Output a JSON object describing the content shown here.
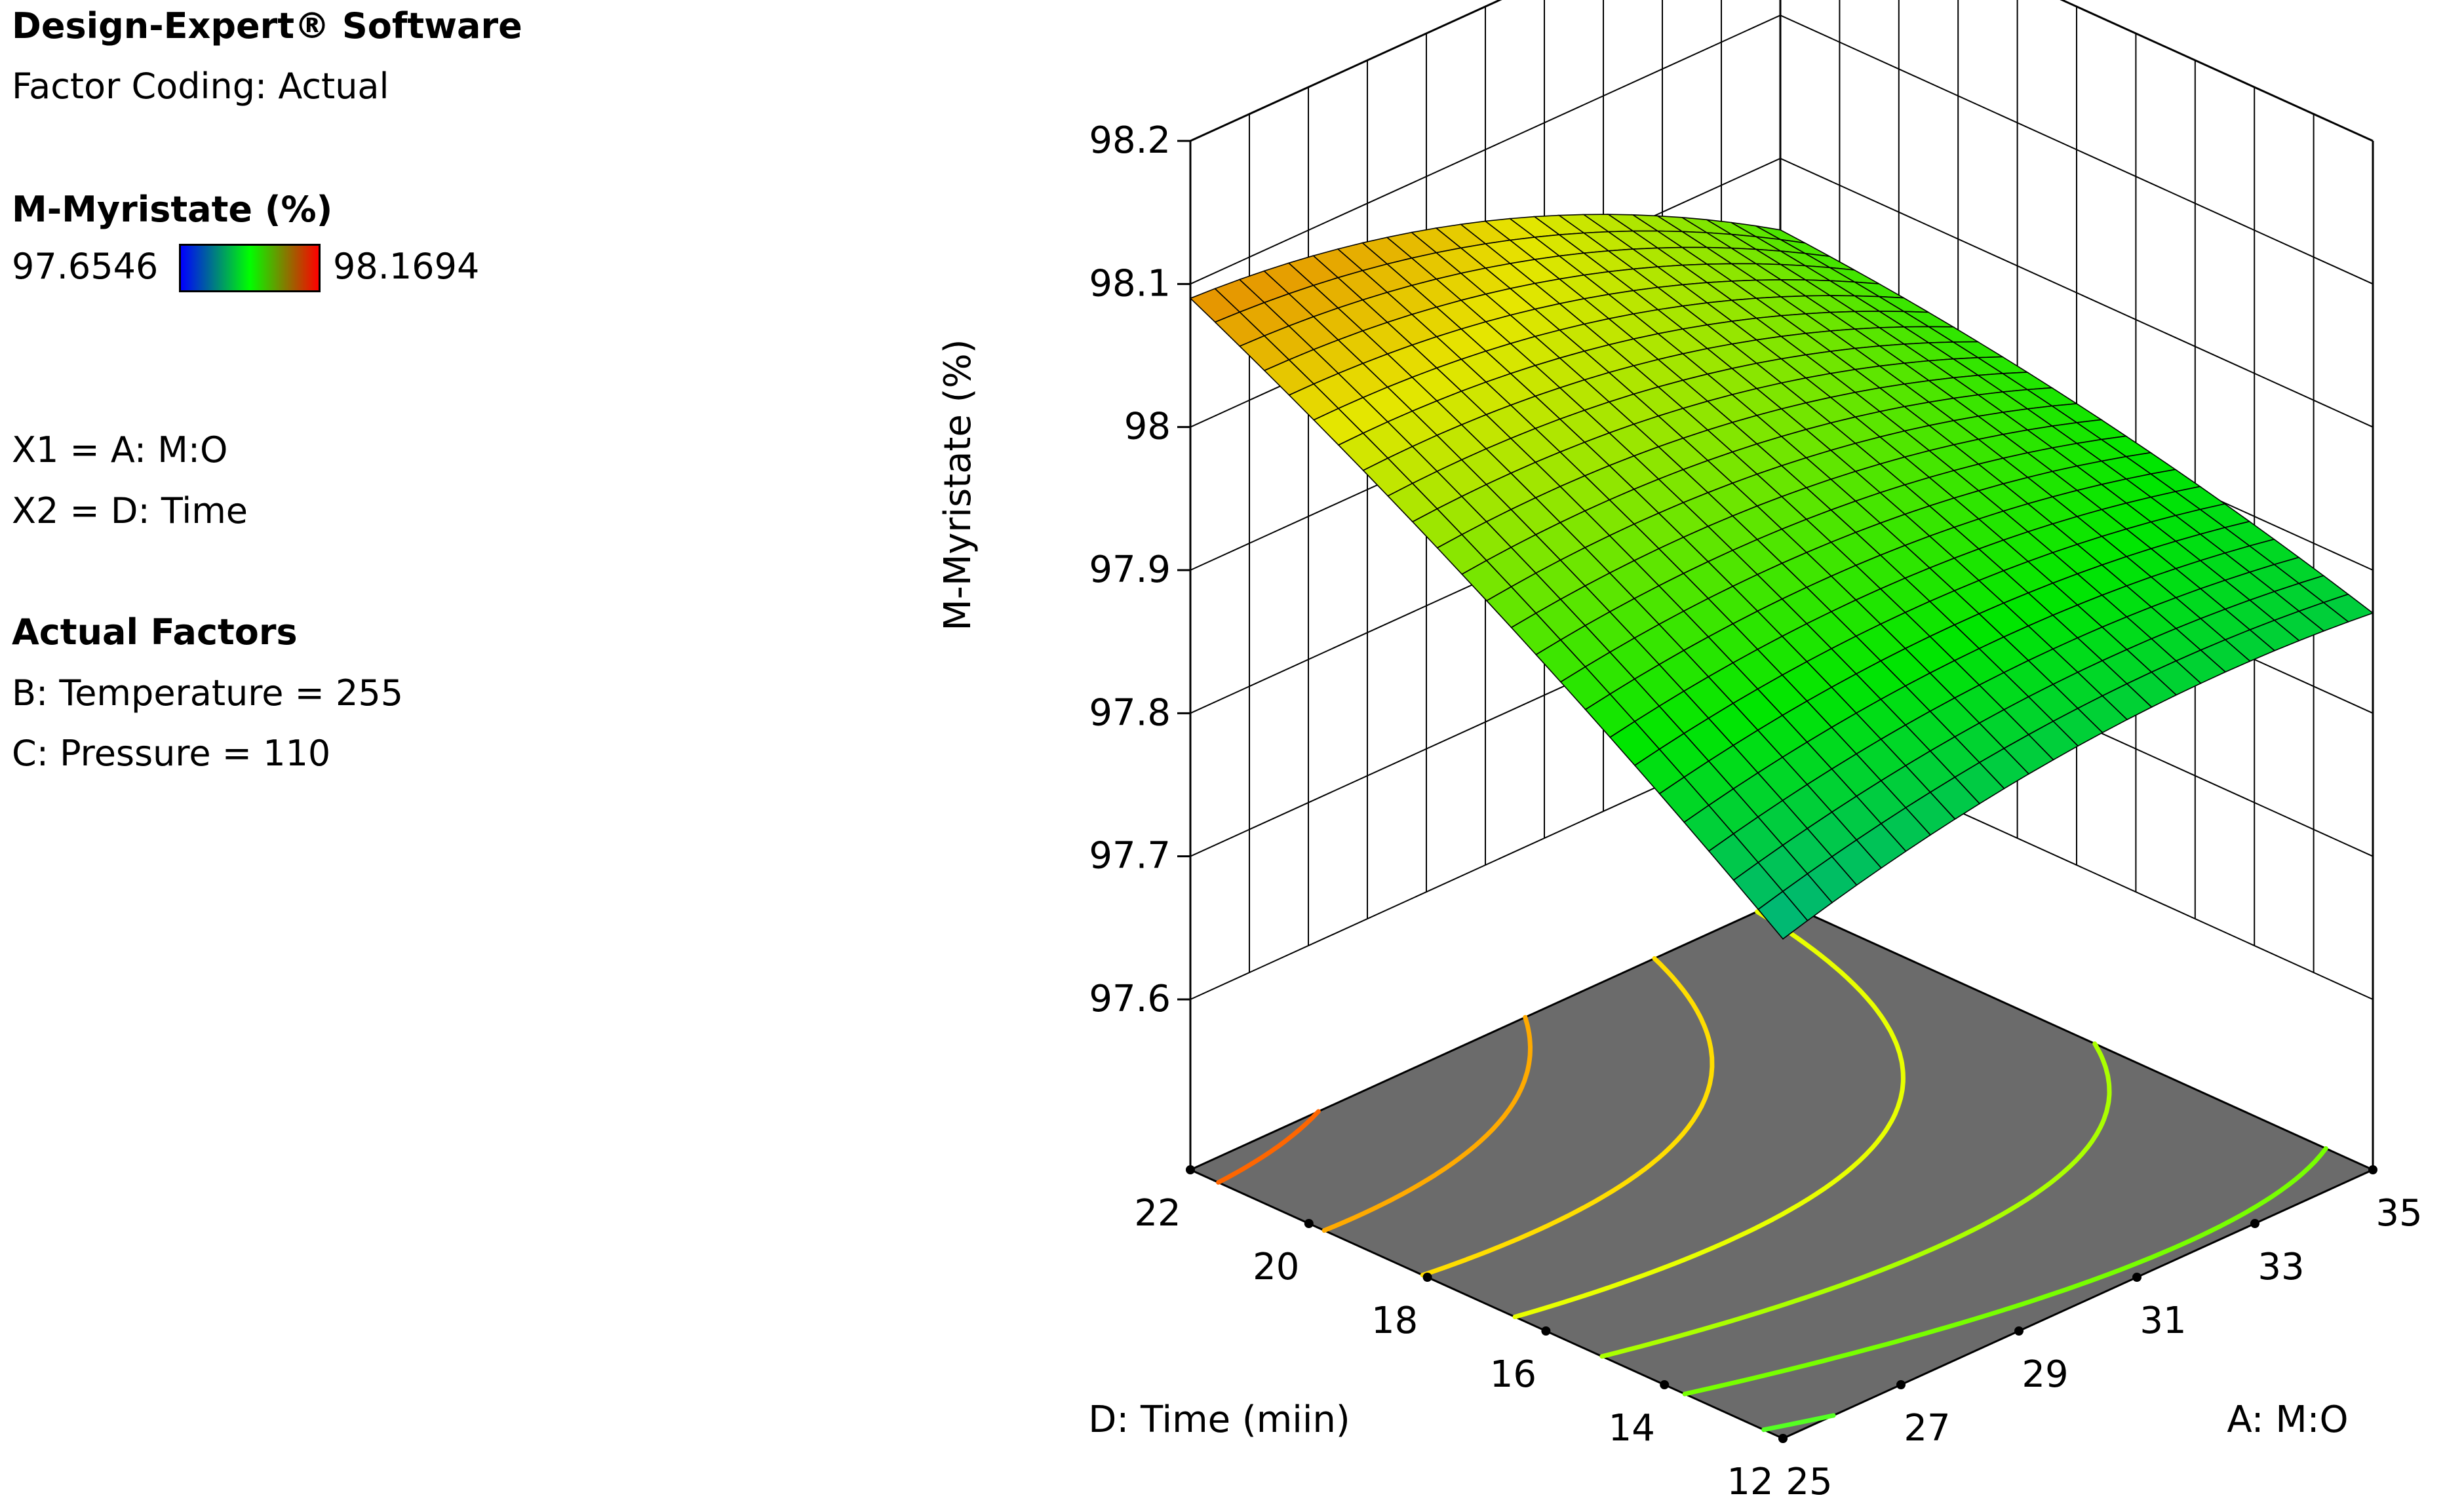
{
  "panel": {
    "software": "Design-Expert® Software",
    "factor_coding": "Factor Coding: Actual",
    "response_title": "M-Myristate (%)",
    "legend": {
      "min_label": "97.6546",
      "max_label": "98.1694",
      "low_color": "#0000ff",
      "mid_color": "#00ff00",
      "high_color": "#ff0000"
    },
    "x1": "X1 = A: M:O",
    "x2": "X2 = D: Time",
    "actual_factors_title": "Actual Factors",
    "factor_b": "B: Temperature = 255",
    "factor_c": "C: Pressure = 110"
  },
  "chart_data": {
    "type": "surface",
    "z_axis": {
      "label": "M-Myristate (%)",
      "ticks": [
        "97.6",
        "97.7",
        "97.8",
        "97.9",
        "98",
        "98.1",
        "98.2"
      ],
      "range": [
        97.6,
        98.2
      ]
    },
    "x_axis": {
      "label": "A: M:O",
      "ticks": [
        "25",
        "27",
        "29",
        "31",
        "33",
        "35"
      ],
      "range": [
        25,
        35
      ]
    },
    "y_axis": {
      "label": "D: Time (miin)",
      "ticks": [
        "12",
        "14",
        "16",
        "18",
        "20",
        "22"
      ],
      "range": [
        12,
        22
      ]
    },
    "surface_corners": [
      {
        "A": 25,
        "D": 22,
        "response": 98.09
      },
      {
        "A": 35,
        "D": 22,
        "response": 97.95
      },
      {
        "A": 25,
        "D": 12,
        "response": 97.83
      },
      {
        "A": 35,
        "D": 12,
        "response": 97.87
      }
    ],
    "color_range": [
      97.6546,
      98.1694
    ],
    "grid": true
  }
}
